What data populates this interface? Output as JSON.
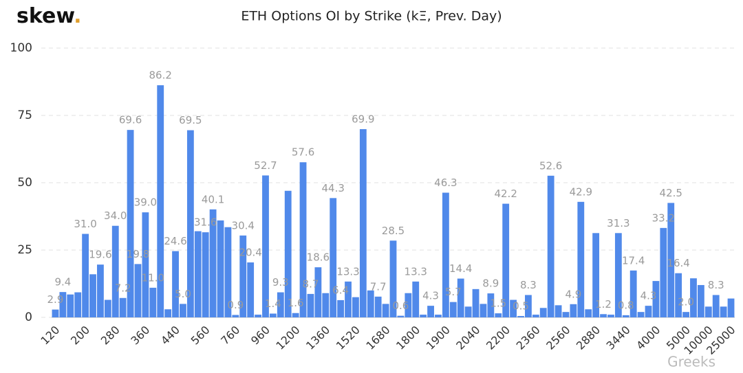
{
  "brand": "skew",
  "brand_dot": ".",
  "watermark": "Greeks",
  "chart_data": {
    "type": "bar",
    "title": "ETH Options OI by Strike (kΞ, Prev. Day)",
    "color": "#5089ea",
    "grid": true,
    "ylim": [
      0,
      100
    ],
    "yticks": [
      0,
      25,
      50,
      75,
      100
    ],
    "categories": [
      "120",
      null,
      null,
      null,
      "200",
      null,
      null,
      null,
      "280",
      null,
      null,
      null,
      "360",
      null,
      null,
      null,
      "440",
      null,
      null,
      null,
      "560",
      null,
      null,
      null,
      "760",
      null,
      null,
      null,
      "960",
      null,
      null,
      null,
      "1200",
      null,
      null,
      null,
      "1360",
      null,
      null,
      null,
      "1520",
      null,
      null,
      null,
      "1680",
      null,
      null,
      null,
      "1800",
      null,
      null,
      null,
      "1900",
      null,
      null,
      null,
      "2040",
      null,
      null,
      null,
      "2200",
      null,
      null,
      null,
      "2360",
      null,
      null,
      null,
      "2560",
      null,
      null,
      null,
      "2880",
      null,
      null,
      null,
      "3440",
      null,
      null,
      null,
      "4000",
      null,
      null,
      null,
      "5000",
      null,
      null,
      "10000",
      null,
      null,
      "25000"
    ],
    "values": [
      2.9,
      9.4,
      8.5,
      9.3,
      31.0,
      16,
      19.6,
      6.5,
      34.0,
      7.2,
      69.6,
      19.8,
      39.0,
      11.0,
      86.2,
      3,
      24.6,
      5.0,
      69.5,
      32,
      31.6,
      40.1,
      36,
      33.5,
      0.9,
      30.4,
      20.4,
      1,
      52.7,
      1.4,
      9.3,
      47,
      1.6,
      57.6,
      8.7,
      18.6,
      9,
      44.3,
      6.4,
      13.3,
      7.5,
      69.9,
      10,
      7.7,
      5,
      28.5,
      0.6,
      9,
      13.3,
      1,
      4.3,
      1,
      46.3,
      5.7,
      14.4,
      4,
      10.5,
      5,
      8.9,
      1.5,
      42.2,
      6.5,
      0.5,
      8.3,
      1,
      3.5,
      52.6,
      4.5,
      2,
      4.9,
      42.9,
      3,
      31.3,
      1.2,
      1,
      31.3,
      0.8,
      17.4,
      2,
      4.3,
      13.5,
      33.2,
      42.5,
      16.4,
      2.0,
      14.5,
      12,
      4,
      8.3,
      4,
      7
    ],
    "value_labels": [
      "2.9",
      "9.4",
      null,
      null,
      "31.0",
      null,
      "19.6",
      null,
      "34.0",
      "7.2",
      "69.6",
      "19.8",
      "39.0",
      "11.0",
      "86.2",
      null,
      "24.6",
      "5.0",
      "69.5",
      null,
      "31.6",
      "40.1",
      null,
      null,
      "0.9",
      "30.4",
      "20.4",
      null,
      "52.7",
      "1.4",
      "9.3",
      null,
      "1.6",
      "57.6",
      "8.7",
      "18.6",
      null,
      "44.3",
      "6.4",
      "13.3",
      null,
      "69.9",
      null,
      "7.7",
      null,
      "28.5",
      "0.6",
      null,
      "13.3",
      null,
      "4.3",
      null,
      "46.3",
      "5.7",
      "14.4",
      null,
      null,
      null,
      "8.9",
      "1.5",
      "42.2",
      null,
      "0.5",
      "8.3",
      null,
      null,
      "52.6",
      null,
      null,
      "4.9",
      "42.9",
      null,
      null,
      "1.2",
      null,
      "31.3",
      "0.8",
      "17.4",
      null,
      "4.3",
      null,
      "33.2",
      "42.5",
      "16.4",
      "2.0",
      null,
      null,
      null,
      "8.3",
      null,
      null
    ]
  }
}
